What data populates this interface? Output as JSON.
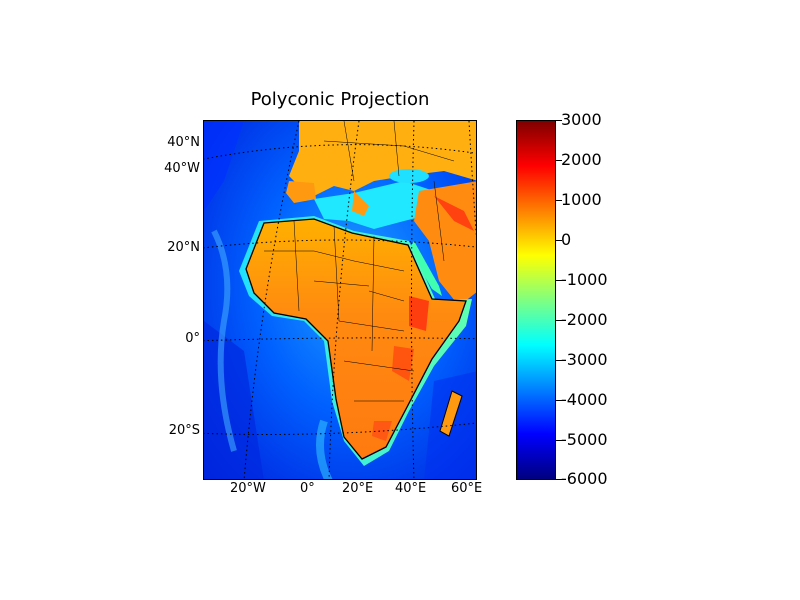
{
  "title": "Polyconic Projection",
  "map": {
    "lat_labels": [
      "40°N",
      "40°W",
      "20°N",
      "0°",
      "20°S"
    ],
    "lon_labels": [
      "20°W",
      "0°",
      "20°E",
      "40°E",
      "60°E"
    ]
  },
  "colorbar": {
    "ticks": [
      "3000",
      "2000",
      "1000",
      "0",
      "-1000",
      "-2000",
      "-3000",
      "-4000",
      "-5000",
      "-6000"
    ],
    "range": [
      -6000,
      3000
    ],
    "colormap": "jet",
    "colors": [
      "#00007f",
      "#0000ff",
      "#0080ff",
      "#00ffff",
      "#80ff80",
      "#ffff00",
      "#ff8000",
      "#ff0000",
      "#7f0000"
    ]
  }
}
